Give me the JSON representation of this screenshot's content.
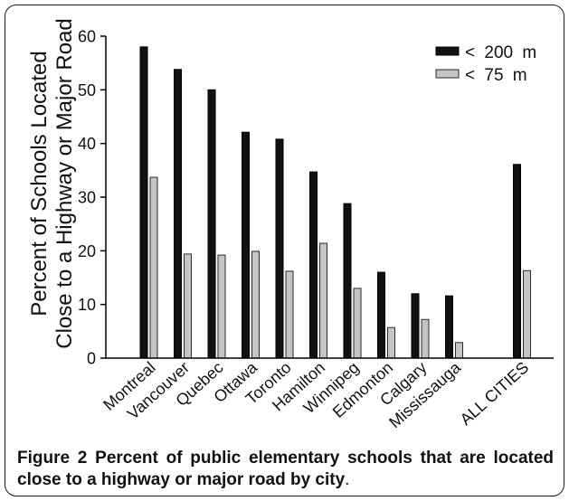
{
  "figure": {
    "caption": {
      "label": "Figure 2",
      "title": "Percent of public elementary schools that are located close to a highway or major road by city",
      "end": "."
    }
  },
  "chart_data": {
    "type": "bar",
    "ylabel": [
      "Percent of Schools Located",
      "Close to a Highway or Major Road"
    ],
    "ylim": [
      0,
      60
    ],
    "yticks": [
      0,
      10,
      20,
      30,
      40,
      50,
      60
    ],
    "categories": [
      "Montreal",
      "Vancouver",
      "Quebec",
      "Ottawa",
      "Toronto",
      "Hamilton",
      "Winnipeg",
      "Edmonton",
      "Calgary",
      "Mississauga",
      "ALL CITIES"
    ],
    "series": [
      {
        "name": "< 200 m",
        "color": "#111111",
        "values": [
          58.0,
          53.8,
          50.0,
          42.1,
          40.8,
          34.7,
          28.8,
          16.0,
          12.0,
          11.6,
          36.1
        ]
      },
      {
        "name": "< 75 m",
        "color": "#c4c4c4",
        "values": [
          33.7,
          19.4,
          19.2,
          19.9,
          16.2,
          21.4,
          13.0,
          5.7,
          7.2,
          2.9,
          16.3
        ]
      }
    ],
    "legend": "top-right",
    "grid": false
  }
}
